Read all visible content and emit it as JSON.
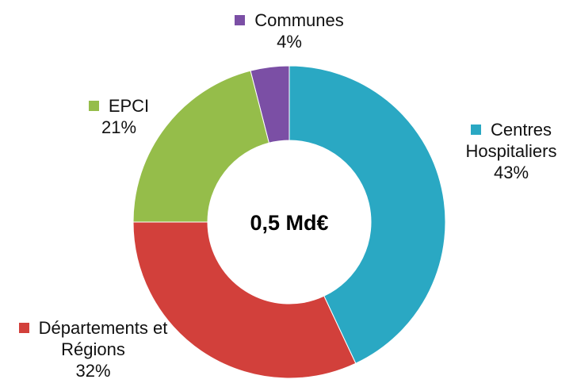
{
  "chart_data": {
    "type": "donut",
    "center_label": "0,5 Md€",
    "categories": [
      "Centres Hospitaliers",
      "Départements et Régions",
      "EPCI",
      "Communes"
    ],
    "values": [
      43,
      32,
      21,
      4
    ],
    "value_labels": [
      "43%",
      "32%",
      "21%",
      "4%"
    ],
    "colors": [
      "#2aa8c3",
      "#d2403b",
      "#95bd4a",
      "#7b4fa5"
    ]
  }
}
